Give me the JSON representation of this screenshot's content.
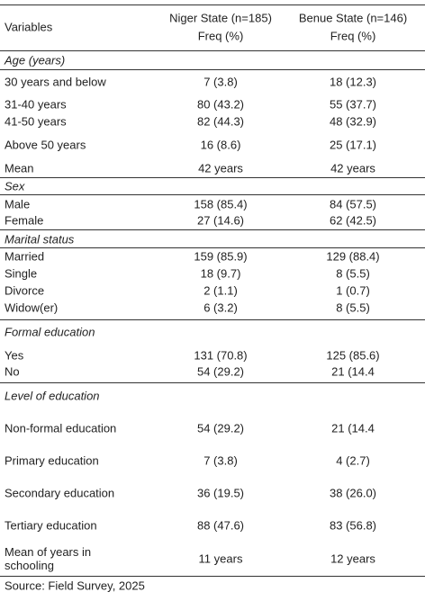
{
  "table": {
    "columns": [
      {
        "label": "Variables"
      },
      {
        "label": "Niger State (n=185)",
        "sub": "Freq (%)"
      },
      {
        "label": "Benue State (n=146)",
        "sub": "Freq (%)"
      }
    ],
    "sections": [
      {
        "title": "Age (years)",
        "rows": [
          [
            "30 years and below",
            "7 (3.8)",
            "18 (12.3)"
          ],
          [
            "31-40 years",
            "80 (43.2)",
            "55 (37.7)"
          ],
          [
            "41-50 years",
            "82 (44.3)",
            "48 (32.9)"
          ],
          [
            "Above 50 years",
            "16 (8.6)",
            "25 (17.1)"
          ],
          [
            "Mean",
            "42 years",
            "42 years"
          ]
        ]
      },
      {
        "title": "Sex",
        "rows": [
          [
            "Male",
            "158 (85.4)",
            "84 (57.5)"
          ],
          [
            "Female",
            "27 (14.6)",
            "62 (42.5)"
          ]
        ]
      },
      {
        "title": "Marital status",
        "rows": [
          [
            "Married",
            "159 (85.9)",
            "129 (88.4)"
          ],
          [
            "Single",
            "18 (9.7)",
            "8 (5.5)"
          ],
          [
            "Divorce",
            "2 (1.1)",
            "1 (0.7)"
          ],
          [
            "Widow(er)",
            "6 (3.2)",
            "8 (5.5)"
          ]
        ]
      },
      {
        "title": "Formal education",
        "rows": [
          [
            "Yes",
            "131 (70.8)",
            "125 (85.6)"
          ],
          [
            "No",
            "54 (29.2)",
            "21 (14.4"
          ]
        ]
      },
      {
        "title": "Level of education",
        "rows": [
          [
            "Non-formal education",
            "54 (29.2)",
            "21 (14.4"
          ],
          [
            "Primary education",
            "7 (3.8)",
            "4 (2.7)"
          ],
          [
            "Secondary education",
            "36 (19.5)",
            "38 (26.0)"
          ],
          [
            "Tertiary education",
            "88 (47.6)",
            "83 (56.8)"
          ],
          [
            "Mean of years in schooling",
            "11 years",
            "12 years"
          ]
        ]
      }
    ],
    "source": "Source: Field Survey, 2025"
  }
}
